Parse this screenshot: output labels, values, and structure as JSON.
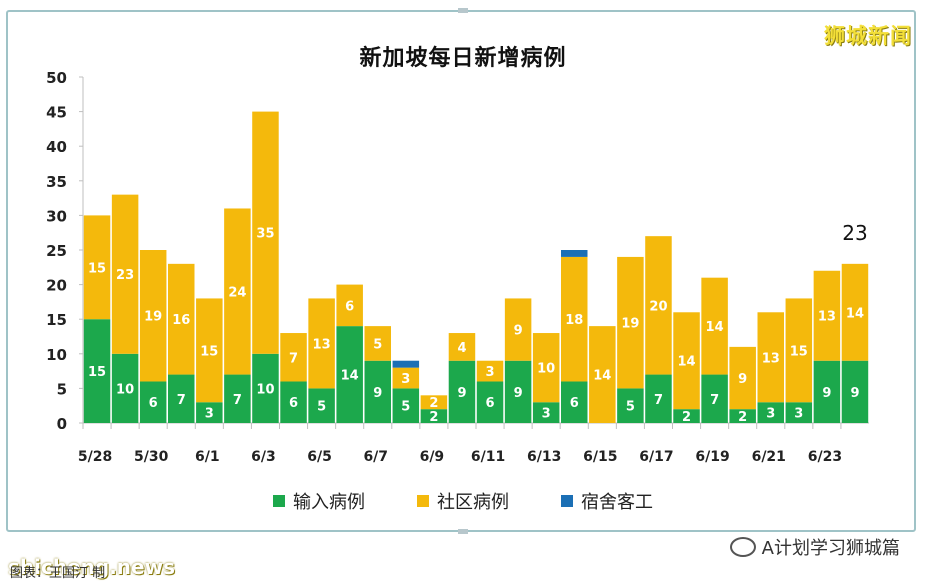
{
  "watermark_top": "狮城新闻",
  "footer": {
    "site": "shicheng.news",
    "caption": "图表：王国汀 制",
    "account": "A计划学习狮城篇"
  },
  "colors": {
    "imported": "#1ca84c",
    "community": "#f4b90c",
    "dormitory": "#1b6fb5",
    "frame": "#9fc3c7",
    "grid_axis": "#bfbfbf"
  },
  "chart_data": {
    "type": "bar",
    "stacked": true,
    "title": "新加坡每日新增病例",
    "ylim": [
      0,
      50
    ],
    "yticks": [
      0,
      5,
      10,
      15,
      20,
      25,
      30,
      35,
      40,
      45,
      50
    ],
    "grid": false,
    "legend_position": "bottom",
    "categories": [
      "5/28",
      "5/29",
      "5/30",
      "5/31",
      "6/1",
      "6/2",
      "6/3",
      "6/4",
      "6/5",
      "6/6",
      "6/7",
      "6/8",
      "6/9",
      "6/10",
      "6/11",
      "6/12",
      "6/13",
      "6/14",
      "6/15",
      "6/16",
      "6/17",
      "6/18",
      "6/19",
      "6/20",
      "6/21",
      "6/22",
      "6/23",
      "6/24"
    ],
    "tick_labels": [
      "5/28",
      "",
      "5/30",
      "",
      "6/1",
      "",
      "6/3",
      "",
      "6/5",
      "",
      "6/7",
      "",
      "6/9",
      "",
      "6/11",
      "",
      "6/13",
      "",
      "6/15",
      "",
      "6/17",
      "",
      "6/19",
      "",
      "6/21",
      "",
      "6/23",
      ""
    ],
    "series": [
      {
        "name": "输入病例",
        "color_key": "imported",
        "values": [
          15,
          10,
          6,
          7,
          3,
          7,
          10,
          6,
          5,
          14,
          9,
          5,
          2,
          9,
          6,
          9,
          3,
          6,
          0,
          5,
          7,
          2,
          7,
          2,
          3,
          3,
          9,
          9
        ]
      },
      {
        "name": "社区病例",
        "color_key": "community",
        "values": [
          15,
          23,
          19,
          16,
          15,
          24,
          35,
          7,
          13,
          6,
          5,
          3,
          2,
          4,
          3,
          9,
          10,
          18,
          14,
          19,
          20,
          14,
          14,
          9,
          13,
          15,
          13,
          14
        ]
      },
      {
        "name": "宿舍客工",
        "color_key": "dormitory",
        "values": [
          0,
          0,
          0,
          0,
          0,
          0,
          0,
          0,
          0,
          0,
          0,
          1,
          0,
          0,
          0,
          0,
          0,
          1,
          0,
          0,
          0,
          0,
          0,
          0,
          0,
          0,
          0,
          0
        ]
      }
    ],
    "annotations": [
      {
        "category": "6/24",
        "text": "23"
      }
    ]
  }
}
